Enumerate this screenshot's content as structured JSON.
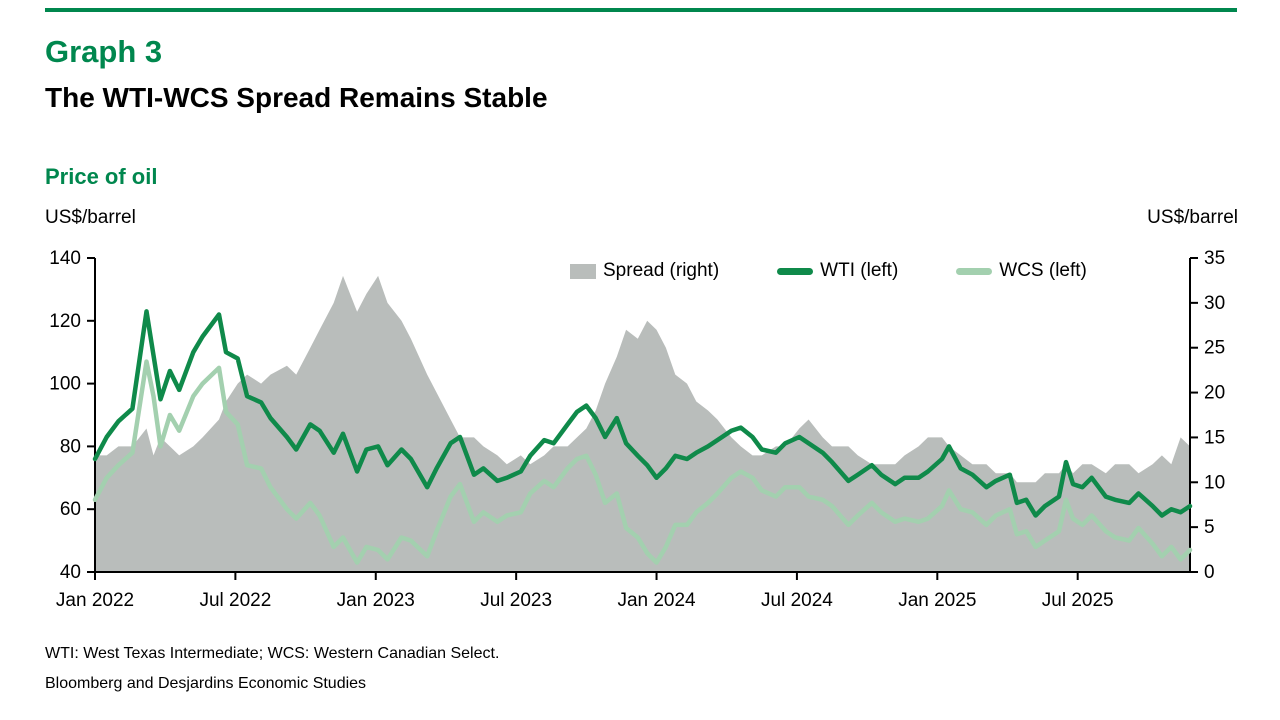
{
  "header": {
    "graph_label": "Graph 3",
    "title": "The WTI-WCS Spread Remains Stable",
    "chart_heading": "Price of oil",
    "left_axis_unit": "US$/barrel",
    "right_axis_unit": "US$/barrel"
  },
  "legend": [
    {
      "label": "Spread (right)",
      "swatch": "area",
      "color": "#b9bdbb"
    },
    {
      "label": "WTI (left)",
      "swatch": "line",
      "color": "#0f8a4a"
    },
    {
      "label": "WCS (left)",
      "swatch": "line",
      "color": "#a3d0af"
    }
  ],
  "footnotes": {
    "definitions": "WTI: West Texas Intermediate; WCS: Western Canadian Select.",
    "sources": "Bloomberg and Desjardins Economic Studies"
  },
  "colors": {
    "accent_green": "#00874e",
    "wti_line": "#0f8a4a",
    "wcs_line": "#a3d0af",
    "spread_area": "#b9bdbb",
    "axis": "#000000"
  },
  "chart_data": {
    "type": "line",
    "title": "Price of oil (US$/barrel)",
    "x_unit": "months since Jan 2022",
    "x_span": 46.8,
    "grid": false,
    "legend_position": "top-inside",
    "left_axis": {
      "min": 40,
      "max": 140,
      "ticks": [
        140,
        120,
        100,
        80,
        60,
        40
      ]
    },
    "right_axis": {
      "min": 0,
      "max": 35,
      "ticks": [
        35,
        30,
        25,
        20,
        15,
        10,
        5,
        0
      ]
    },
    "x_ticks": [
      {
        "m": 0,
        "label": "Jan 2022"
      },
      {
        "m": 6,
        "label": "Jul 2022"
      },
      {
        "m": 12,
        "label": "Jan 2023"
      },
      {
        "m": 18,
        "label": "Jul 2023"
      },
      {
        "m": 24,
        "label": "Jan 2024"
      },
      {
        "m": 30,
        "label": "Jul 2024"
      },
      {
        "m": 36,
        "label": "Jan 2025"
      },
      {
        "m": 42,
        "label": "Jul 2025"
      }
    ],
    "x": [
      0,
      0.5,
      1,
      1.6,
      2.2,
      2.5,
      2.8,
      3.2,
      3.6,
      4.2,
      4.6,
      5.3,
      5.6,
      6.1,
      6.5,
      7.1,
      7.5,
      8.2,
      8.6,
      9.2,
      9.6,
      10.2,
      10.6,
      11.2,
      11.6,
      12.1,
      12.5,
      13.1,
      13.5,
      14.2,
      14.6,
      15.2,
      15.6,
      16.2,
      16.6,
      17.2,
      17.6,
      18.2,
      18.6,
      19.2,
      19.6,
      20.2,
      20.6,
      21.0,
      21.4,
      21.8,
      22.3,
      22.7,
      23.2,
      23.6,
      24.0,
      24.4,
      24.8,
      25.3,
      25.7,
      26.2,
      26.6,
      27.2,
      27.6,
      28.1,
      28.5,
      29.1,
      29.5,
      30.1,
      30.5,
      31.1,
      31.5,
      32.2,
      32.6,
      33.2,
      33.6,
      34.2,
      34.6,
      35.2,
      35.6,
      36.2,
      36.5,
      37.0,
      37.5,
      38.1,
      38.5,
      39.1,
      39.4,
      39.8,
      40.2,
      40.6,
      41.2,
      41.5,
      41.8,
      42.2,
      42.6,
      43.2,
      43.6,
      44.2,
      44.6,
      45.2,
      45.6,
      46.0,
      46.4,
      46.8
    ],
    "series": [
      {
        "name": "Spread",
        "axis": "right",
        "style": "area",
        "color": "#b9bdbb",
        "values": [
          13,
          13,
          14,
          14,
          16,
          13,
          15,
          14,
          13,
          14,
          15,
          17,
          19,
          21,
          22,
          21,
          22,
          23,
          22,
          25,
          27,
          30,
          33,
          29,
          31,
          33,
          30,
          28,
          26,
          22,
          20,
          17,
          15,
          15,
          14,
          13,
          12,
          13,
          12,
          13,
          14,
          14,
          15,
          16,
          18,
          21,
          24,
          27,
          26,
          28,
          27,
          25,
          22,
          21,
          19,
          18,
          17,
          15,
          14,
          13,
          13,
          14,
          14,
          16,
          17,
          15,
          14,
          14,
          13,
          12,
          12,
          12,
          13,
          14,
          15,
          15,
          14,
          13,
          12,
          12,
          11,
          11,
          10,
          10,
          10,
          11,
          11,
          12,
          11,
          12,
          12,
          11,
          12,
          12,
          11,
          12,
          13,
          12,
          15,
          14
        ]
      },
      {
        "name": "WTI",
        "axis": "left",
        "style": "line",
        "color": "#0f8a4a",
        "values": [
          76,
          83,
          88,
          92,
          123,
          109,
          95,
          104,
          98,
          110,
          115,
          122,
          110,
          108,
          96,
          94,
          89,
          83,
          79,
          87,
          85,
          78,
          84,
          72,
          79,
          80,
          74,
          79,
          76,
          67,
          73,
          81,
          83,
          71,
          73,
          69,
          70,
          72,
          77,
          82,
          81,
          87,
          91,
          93,
          89,
          83,
          89,
          81,
          77,
          74,
          70,
          73,
          77,
          76,
          78,
          80,
          82,
          85,
          86,
          83,
          79,
          78,
          81,
          83,
          81,
          78,
          75,
          69,
          71,
          74,
          71,
          68,
          70,
          70,
          72,
          76,
          80,
          73,
          71,
          67,
          69,
          71,
          62,
          63,
          58,
          61,
          64,
          75,
          68,
          67,
          70,
          64,
          63,
          62,
          65,
          61,
          58,
          60,
          59,
          61
        ]
      },
      {
        "name": "WCS",
        "axis": "left",
        "style": "line",
        "color": "#a3d0af",
        "values": [
          63,
          70,
          74,
          78,
          107,
          96,
          80,
          90,
          85,
          96,
          100,
          105,
          91,
          87,
          74,
          73,
          67,
          60,
          57,
          62,
          58,
          48,
          51,
          43,
          48,
          47,
          44,
          51,
          50,
          45,
          53,
          64,
          68,
          56,
          59,
          56,
          58,
          59,
          65,
          69,
          67,
          73,
          76,
          77,
          71,
          62,
          65,
          54,
          51,
          46,
          43,
          48,
          55,
          55,
          59,
          62,
          65,
          70,
          72,
          70,
          66,
          64,
          67,
          67,
          64,
          63,
          61,
          55,
          58,
          62,
          59,
          56,
          57,
          56,
          57,
          61,
          66,
          60,
          59,
          55,
          58,
          60,
          52,
          53,
          48,
          50,
          53,
          63,
          57,
          55,
          58,
          53,
          51,
          50,
          54,
          49,
          45,
          48,
          44,
          47
        ]
      }
    ]
  }
}
